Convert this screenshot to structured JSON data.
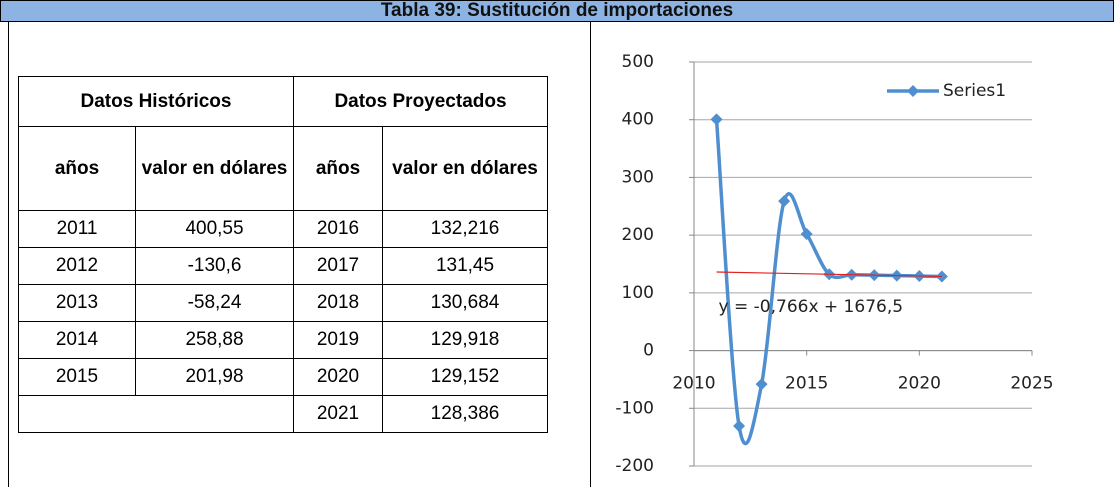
{
  "header": {
    "title": "Tabla 39: Sustitución de importaciones"
  },
  "table": {
    "groups": [
      "Datos Históricos",
      "Datos Proyectados"
    ],
    "columns": [
      "años",
      "valor en dólares",
      "años",
      "valor en dólares"
    ],
    "rows": [
      [
        "2011",
        "400,55",
        "2016",
        "132,216"
      ],
      [
        "2012",
        "-130,6",
        "2017",
        "131,45"
      ],
      [
        "2013",
        "-58,24",
        "2018",
        "130,684"
      ],
      [
        "2014",
        "258,88",
        "2019",
        "129,918"
      ],
      [
        "2015",
        "201,98",
        "2020",
        "129,152"
      ],
      [
        null,
        null,
        "2021",
        "128,386"
      ]
    ]
  },
  "chart_data": {
    "type": "line",
    "smooth": true,
    "x": [
      2011,
      2012,
      2013,
      2014,
      2015,
      2016,
      2017,
      2018,
      2019,
      2020,
      2021
    ],
    "series": [
      {
        "name": "Series1",
        "color": "#4f8fd0",
        "values": [
          400.55,
          -130.6,
          -58.24,
          258.88,
          201.98,
          132.216,
          131.45,
          130.684,
          129.918,
          129.152,
          128.386
        ]
      }
    ],
    "trendline": {
      "slope": -0.766,
      "intercept": 1676.5,
      "color": "#e02020",
      "label": "y = -0,766x + 1676,5"
    },
    "xlim": [
      2010,
      2025
    ],
    "xticks": [
      2010,
      2015,
      2020,
      2025
    ],
    "ylim": [
      -200,
      500
    ],
    "yticks": [
      -200,
      -100,
      0,
      100,
      200,
      300,
      400,
      500
    ],
    "grid": true,
    "legend": "top-right"
  }
}
